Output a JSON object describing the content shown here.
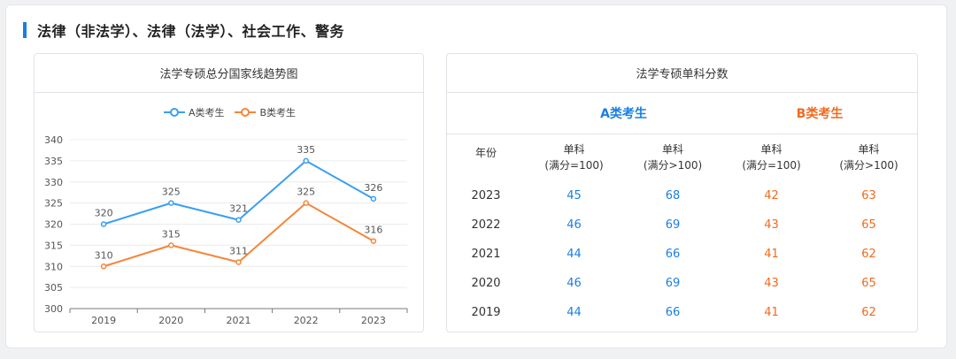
{
  "section_title": "法律（非法学）、法律（法学）、社会工作、警务",
  "left_panel": {
    "title": "法学专硕总分国家线趋势图"
  },
  "right_panel": {
    "title": "法学专硕单科分数",
    "group_a": "A类考生",
    "group_b": "B类考生",
    "col_year": "年份",
    "col_single_100_l1": "单科",
    "col_single_100_l2": "(满分=100)",
    "col_single_gt100_l1": "单科",
    "col_single_gt100_l2": "(满分>100)",
    "rows": [
      {
        "year": "2023",
        "a100": "45",
        "agt": "68",
        "b100": "42",
        "bgt": "63"
      },
      {
        "year": "2022",
        "a100": "46",
        "agt": "69",
        "b100": "43",
        "bgt": "65"
      },
      {
        "year": "2021",
        "a100": "44",
        "agt": "66",
        "b100": "41",
        "bgt": "62"
      },
      {
        "year": "2020",
        "a100": "46",
        "agt": "69",
        "b100": "43",
        "bgt": "65"
      },
      {
        "year": "2019",
        "a100": "44",
        "agt": "66",
        "b100": "41",
        "bgt": "62"
      }
    ]
  },
  "colors": {
    "accent": "#1a7fe3",
    "series_a": "#3a9ff0",
    "series_b": "#f5863a"
  },
  "chart_data": {
    "type": "line",
    "categories": [
      "2019",
      "2020",
      "2021",
      "2022",
      "2023"
    ],
    "series": [
      {
        "name": "A类考生",
        "values": [
          320,
          325,
          321,
          335,
          326
        ]
      },
      {
        "name": "B类考生",
        "values": [
          310,
          315,
          311,
          325,
          316
        ]
      }
    ],
    "ylim": [
      300,
      340
    ],
    "yticks": [
      300,
      305,
      310,
      315,
      320,
      325,
      330,
      335,
      340
    ],
    "grid": true,
    "legend_position": "top-center"
  }
}
